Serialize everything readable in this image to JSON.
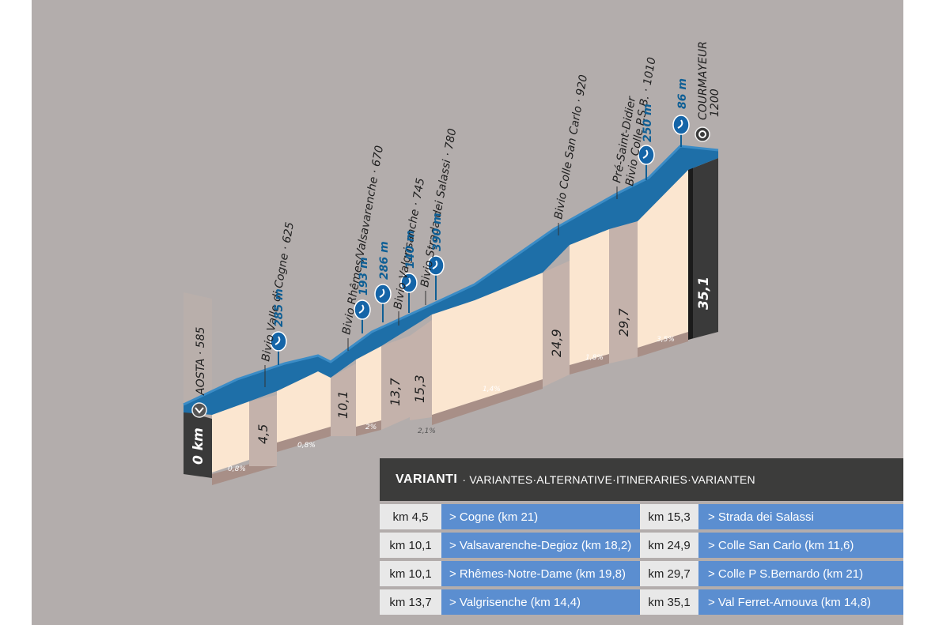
{
  "profile": {
    "start": {
      "km": "0 km",
      "name": "AOSTA · 585"
    },
    "end": {
      "km": "35,1",
      "name": "COURMAYEUR",
      "alt": "1200"
    },
    "km_markers": [
      "4,5",
      "10,1",
      "13,7",
      "15,3",
      "24,9",
      "29,7"
    ],
    "segment_grades": [
      "0,8%",
      "0,8%",
      "2%",
      "2,1%",
      "1,4%",
      "1,8%",
      "3,5%"
    ],
    "waypoints": [
      {
        "name": "Bivio Valle di Cogne · 625",
        "elev_gain": "285 m"
      },
      {
        "name": "Bivio Rhêmes/Valsavarenche · 670",
        "elev_gain": "193 m"
      },
      {
        "name": "Bivio Valgrisanche · 745",
        "elev_gain": "286 m"
      },
      {
        "name": "",
        "elev_gain": "140 m"
      },
      {
        "name": "Bivio Strada dei Salassi · 780",
        "elev_gain": "390 m"
      },
      {
        "name": "Bivio Colle San Carlo · 920",
        "elev_gain": ""
      },
      {
        "name": "Pré-Saint-Didier",
        "elev_gain": ""
      },
      {
        "name": "Bivio Colle P.S.B. · 1010",
        "elev_gain": "250 m"
      },
      {
        "name": "",
        "elev_gain": "86 m"
      }
    ]
  },
  "variants": {
    "title": "VARIANTI",
    "subtitle": "· VARIANTES·ALTERNATIVE·ITINERARIES·VARIANTEN",
    "rows": [
      {
        "km_a": "km 4,5",
        "route_a": "> Cogne (km 21)",
        "km_b": "km 15,3",
        "route_b": "> Strada dei Salassi"
      },
      {
        "km_a": "km 10,1",
        "route_a": "> Valsavarenche-Degioz (km 18,2)",
        "km_b": "km 24,9",
        "route_b": "> Colle San Carlo (km 11,6)"
      },
      {
        "km_a": "km 10,1",
        "route_a": "> Rhêmes-Notre-Dame (km 19,8)",
        "km_b": "km 29,7",
        "route_b": "> Colle P S.Bernardo (km 21)"
      },
      {
        "km_a": "km 13,7",
        "route_a": "> Valgrisenche (km 14,4)",
        "km_b": "km 35,1",
        "route_b": "> Val Ferret-Arnouva (km 14,8)"
      }
    ]
  },
  "colors": {
    "background": "#b3adac",
    "ribbon": "#1e6fa8",
    "ribbon_top": "#3b8cc6",
    "face": "#fbe6d0",
    "pillar": "#c4b2ab",
    "header": "#3c3c3b",
    "cell_blue": "#5b8ed0"
  }
}
